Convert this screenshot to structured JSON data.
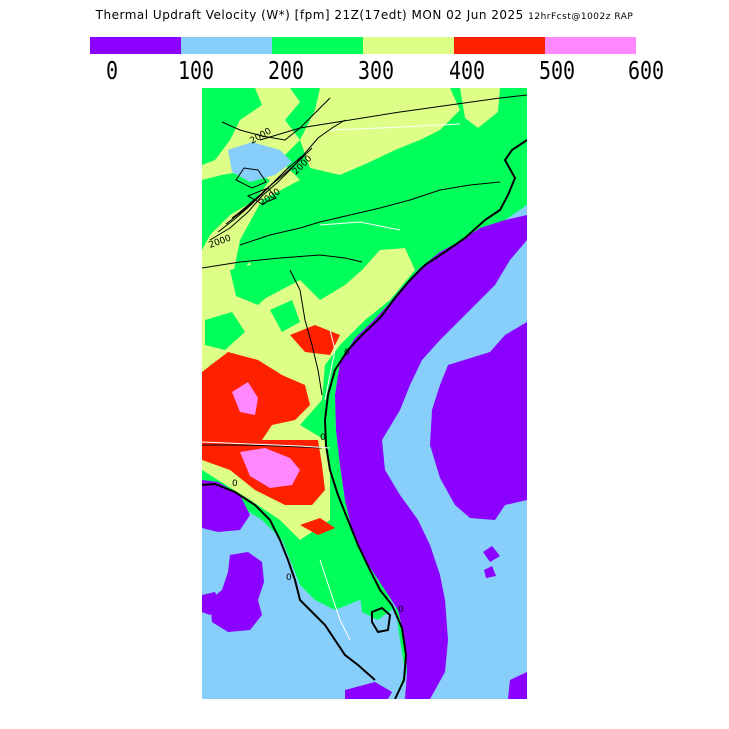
{
  "title": {
    "main": "Thermal Updraft Velocity (W*) [fpm] 21Z(17edt) MON 02 Jun 2025",
    "model": "12hrFcst@1002z RAP"
  },
  "legend": {
    "colors": [
      "#8c00ff",
      "#87cefa",
      "#00ff5a",
      "#ddff87",
      "#ff2000",
      "#ff88ff"
    ],
    "ticks": [
      "0",
      "100",
      "200",
      "300",
      "400",
      "500",
      "600"
    ]
  },
  "map": {
    "contour_labels": [
      "2000",
      "2000",
      "2000",
      "2000"
    ],
    "coast_labels": [
      "0",
      "0",
      "0",
      "0",
      "0"
    ]
  }
}
